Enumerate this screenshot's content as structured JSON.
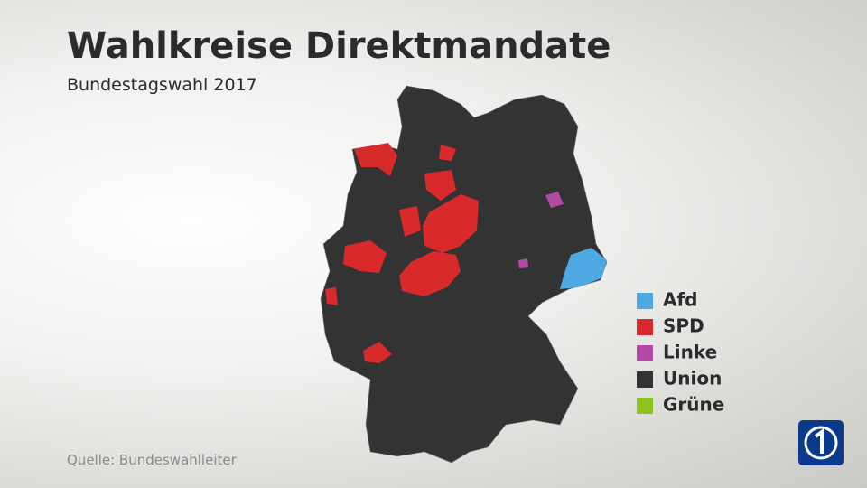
{
  "header": {
    "title": "Wahlkreise Direktmandate",
    "subtitle": "Bundestagswahl 2017"
  },
  "legend": [
    {
      "label": "Afd",
      "color": "#4ea9e3"
    },
    {
      "label": "SPD",
      "color": "#d8292b"
    },
    {
      "label": "Linke",
      "color": "#b24aa6"
    },
    {
      "label": "Union",
      "color": "#333333"
    },
    {
      "label": "Grüne",
      "color": "#8cc320"
    }
  ],
  "source": "Quelle: Bundeswahlleiter"
}
